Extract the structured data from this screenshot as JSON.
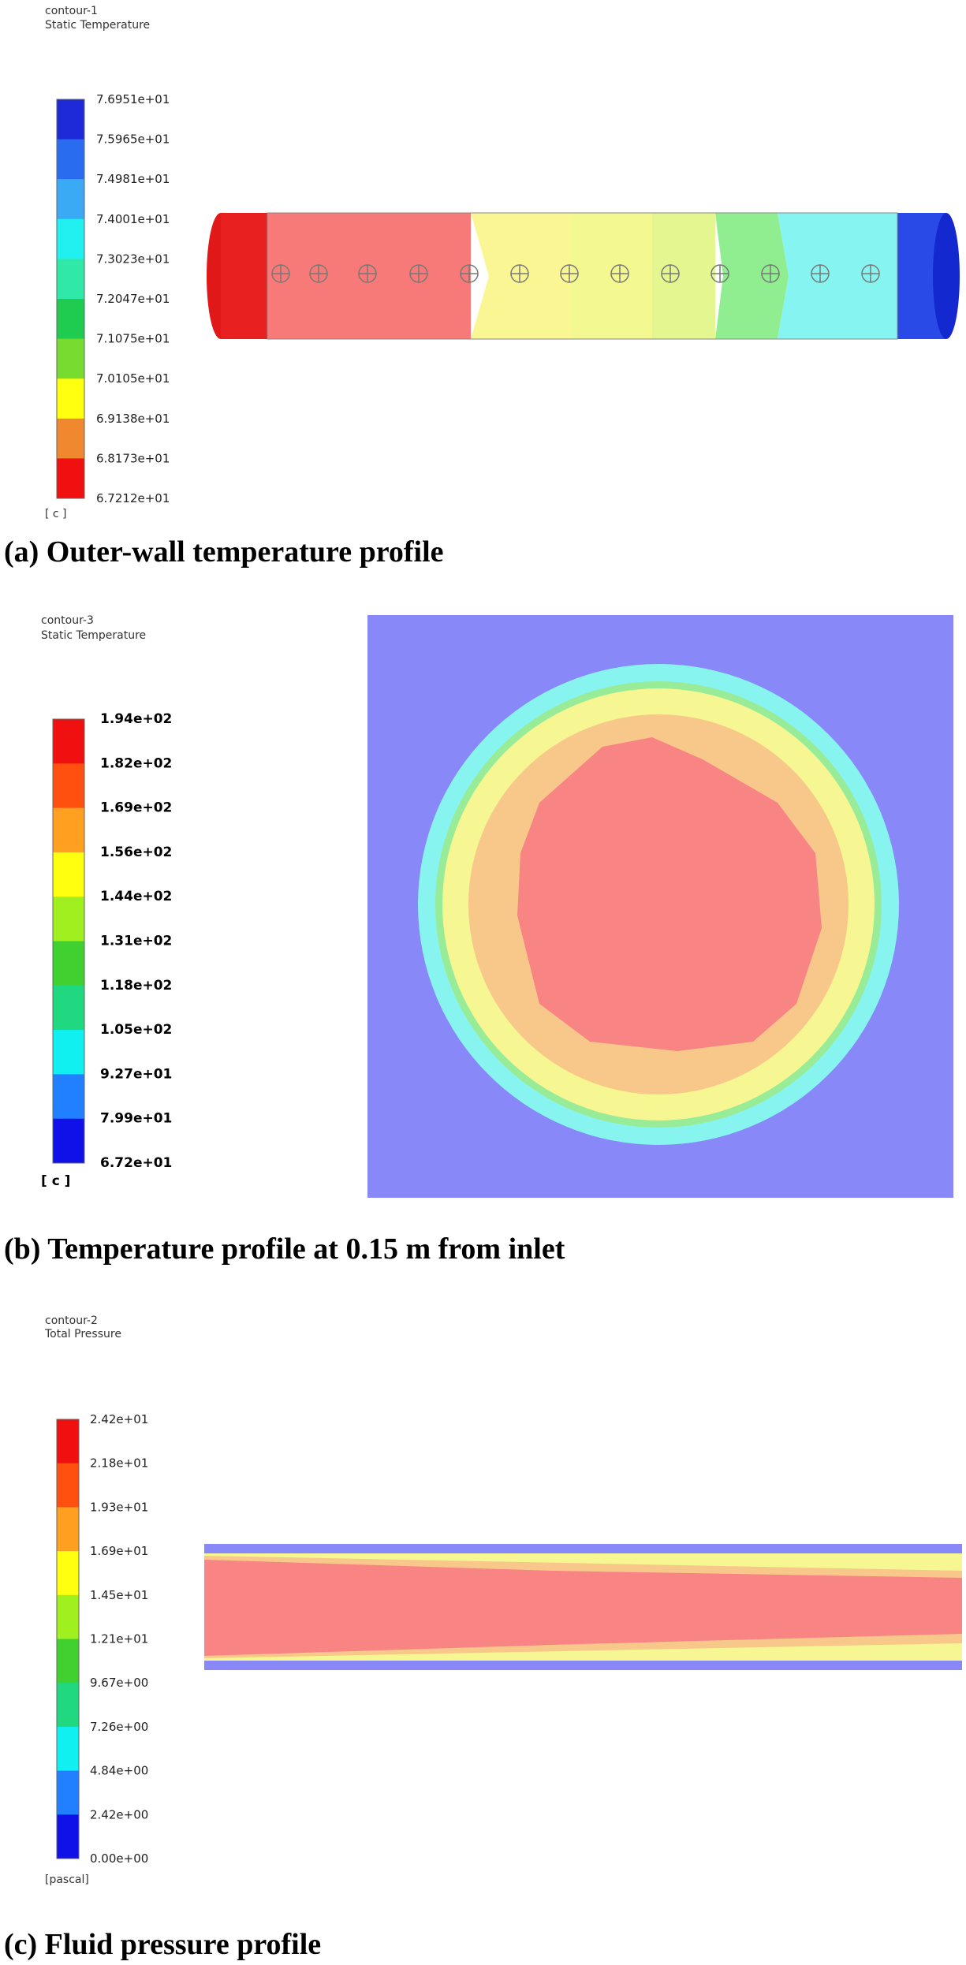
{
  "panels": [
    {
      "contour": "contour-1",
      "variable": "Static Temperature",
      "legend_labels": [
        "7.6951e+01",
        "7.5965e+01",
        "7.4981e+01",
        "7.4001e+01",
        "7.3023e+01",
        "7.2047e+01",
        "7.1075e+01",
        "7.0105e+01",
        "6.9138e+01",
        "6.8173e+01",
        "6.7212e+01"
      ],
      "unit": "[ c ]",
      "caption": "(a) Outer-wall temperature profile"
    },
    {
      "contour": "contour-3",
      "variable": "Static Temperature",
      "legend_labels": [
        "1.94e+02",
        "1.82e+02",
        "1.69e+02",
        "1.56e+02",
        "1.44e+02",
        "1.31e+02",
        "1.18e+02",
        "1.05e+02",
        "9.27e+01",
        "7.99e+01",
        "6.72e+01"
      ],
      "unit": "[ c ]",
      "caption": "(b) Temperature profile at 0.15 m from inlet"
    },
    {
      "contour": "contour-2",
      "variable": "Total Pressure",
      "legend_labels": [
        "2.42e+01",
        "2.18e+01",
        "1.93e+01",
        "1.69e+01",
        "1.45e+01",
        "1.21e+01",
        "9.67e+00",
        "7.26e+00",
        "4.84e+00",
        "2.42e+00",
        "0.00e+00"
      ],
      "unit": "[pascal]",
      "caption": "(c) Fluid pressure profile"
    }
  ]
}
